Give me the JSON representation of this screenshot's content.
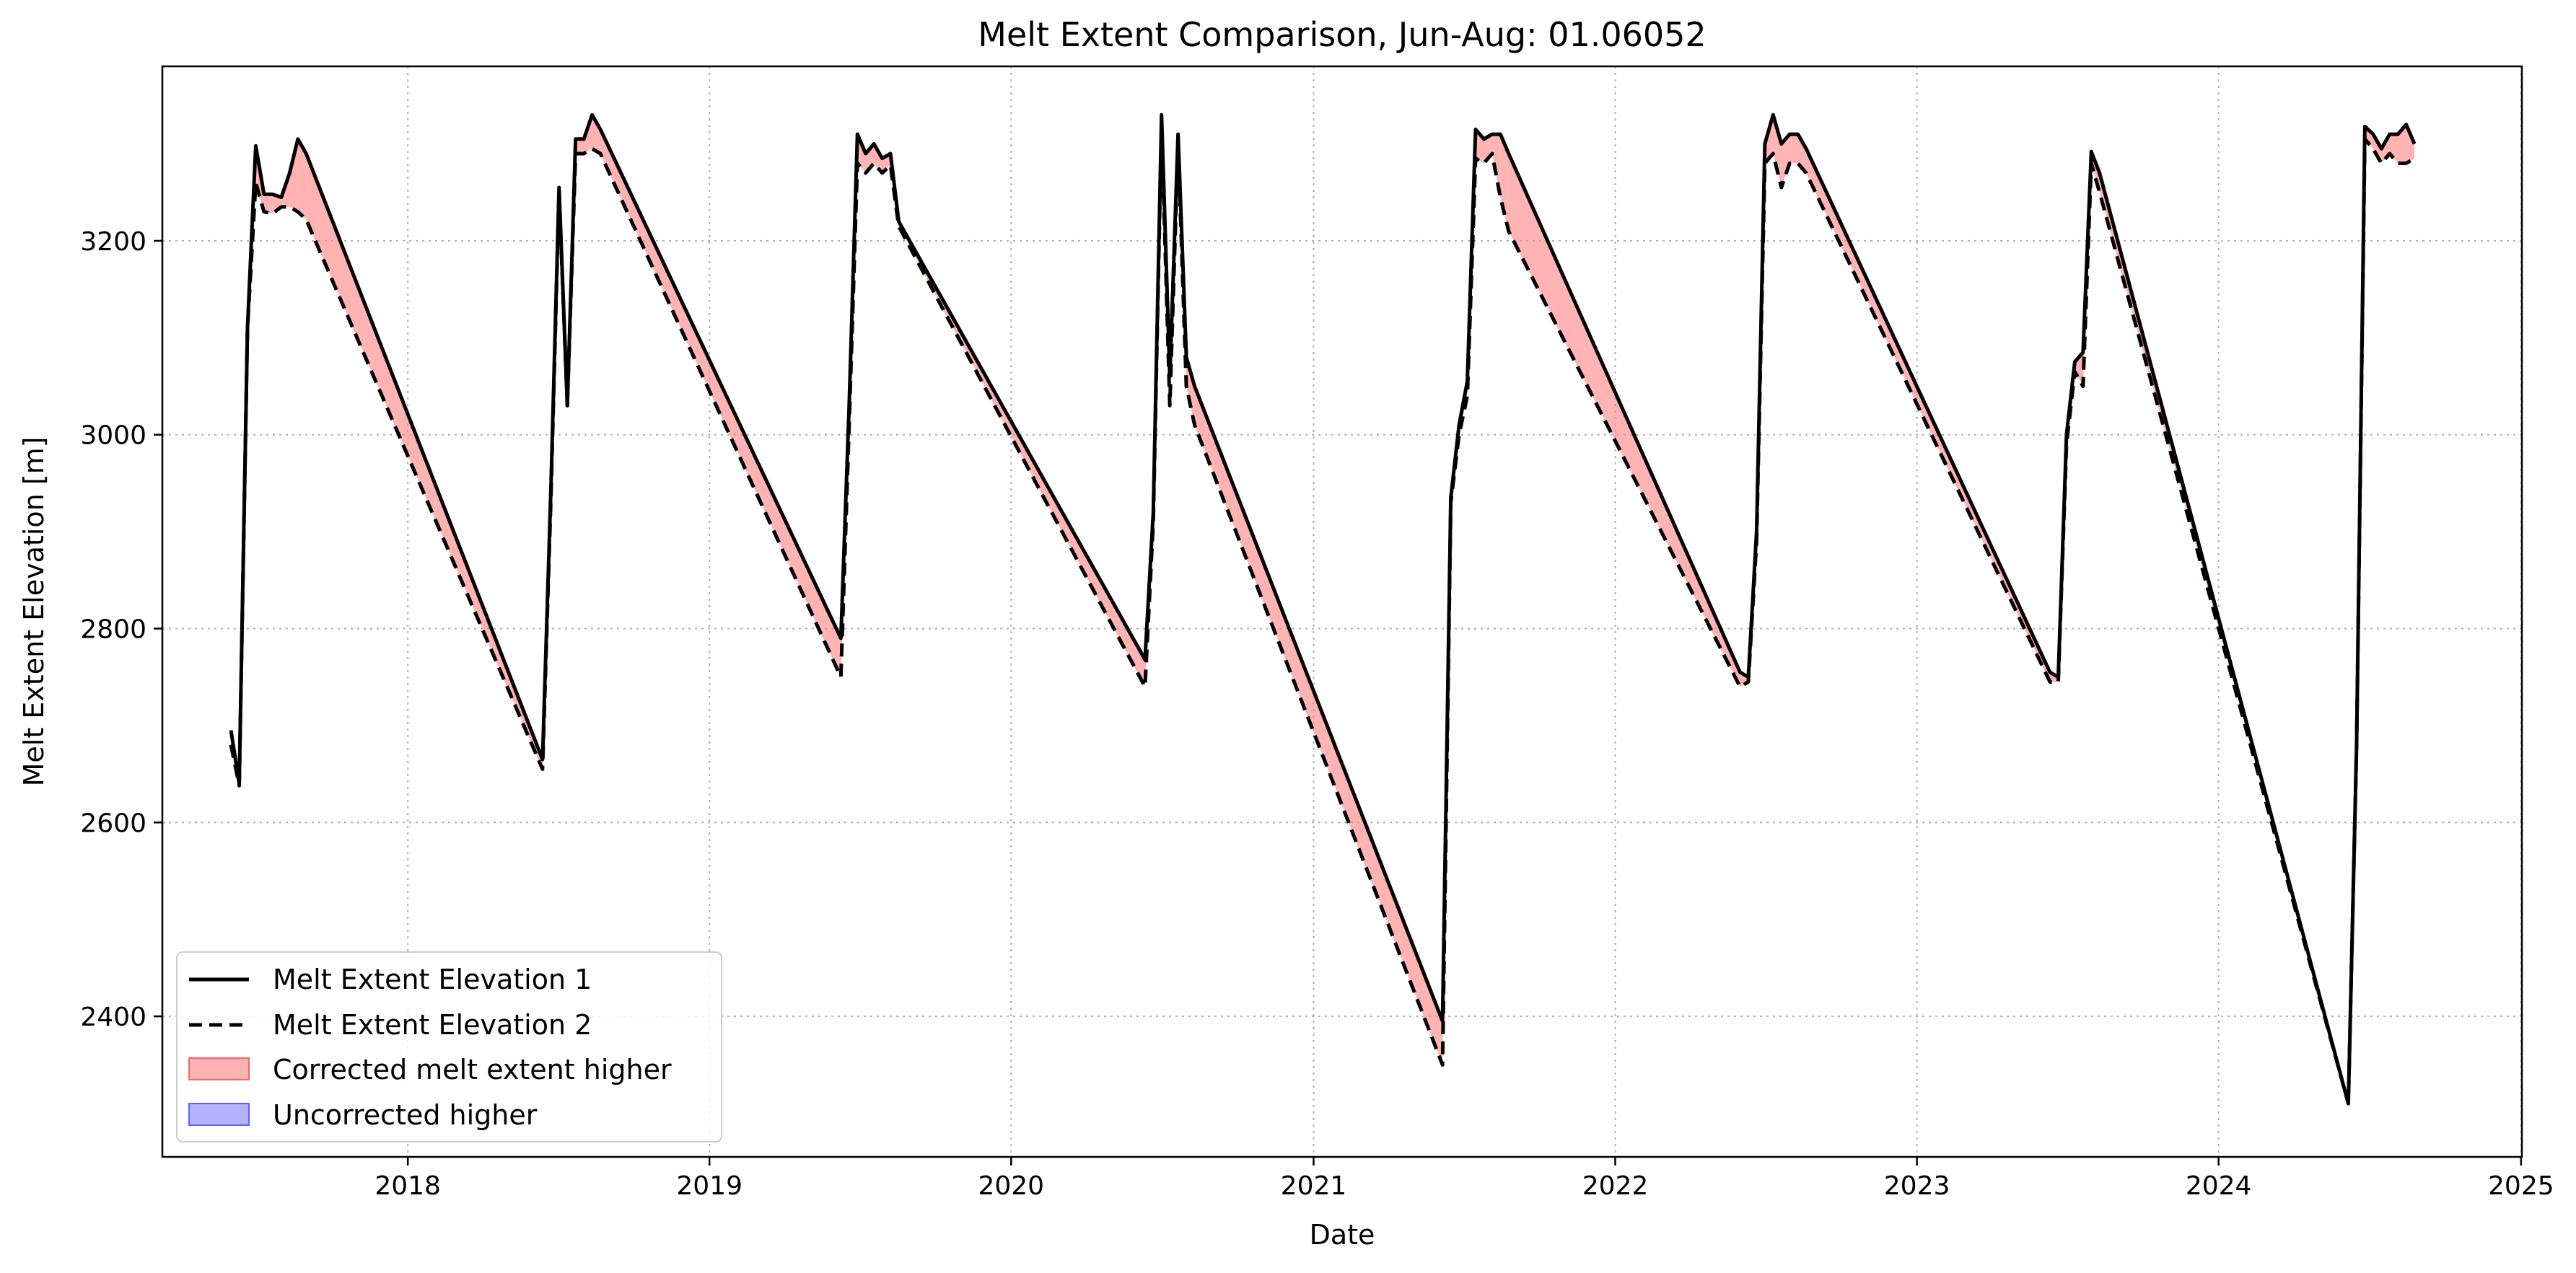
{
  "chart_data": {
    "type": "line",
    "title": "Melt Extent Comparison, Jun-Aug: 01.06052",
    "xlabel": "Date",
    "ylabel": "Melt Extent Elevation [m]",
    "xlim": [
      "2017-03-10",
      "2025-01-02"
    ],
    "ylim": [
      2255,
      3380
    ],
    "x_ticks": [
      "2018",
      "2019",
      "2020",
      "2021",
      "2022",
      "2023",
      "2024",
      "2025"
    ],
    "y_ticks": [
      2400,
      2600,
      2800,
      3000,
      3200
    ],
    "grid": true,
    "legend_position": "lower-left",
    "legend": [
      {
        "label": "Melt Extent Elevation 1",
        "style": "solid",
        "color": "#000000"
      },
      {
        "label": "Melt Extent Elevation 2",
        "style": "dashed",
        "color": "#000000"
      },
      {
        "label": "Corrected melt extent higher",
        "style": "fill",
        "color": "#ff8080"
      },
      {
        "label": "Uncorrected higher",
        "style": "fill",
        "color": "#8080ff"
      }
    ],
    "series": [
      {
        "name": "Melt Extent Elevation 1",
        "style": "solid",
        "dates": [
          "2017-06-01",
          "2017-06-11",
          "2017-06-21",
          "2017-07-01",
          "2017-07-11",
          "2017-07-21",
          "2017-08-01",
          "2017-08-11",
          "2017-08-21",
          "2017-08-31",
          "2018-06-13",
          "2018-06-23",
          "2018-07-03",
          "2018-07-13",
          "2018-07-23",
          "2018-08-02",
          "2018-08-12",
          "2018-08-22",
          "2019-06-09",
          "2019-06-19",
          "2019-06-29",
          "2019-07-09",
          "2019-07-19",
          "2019-07-29",
          "2019-08-08",
          "2019-08-18",
          "2020-06-11",
          "2020-06-21",
          "2020-07-01",
          "2020-07-11",
          "2020-07-21",
          "2020-07-31",
          "2020-08-10",
          "2021-06-06",
          "2021-06-16",
          "2021-06-26",
          "2021-07-06",
          "2021-07-16",
          "2021-07-26",
          "2021-08-05",
          "2021-08-15",
          "2021-08-25",
          "2022-06-01",
          "2022-06-11",
          "2022-06-21",
          "2022-07-01",
          "2022-07-11",
          "2022-07-21",
          "2022-07-31",
          "2022-08-10",
          "2022-08-20",
          "2023-06-11",
          "2023-06-21",
          "2023-07-01",
          "2023-07-11",
          "2023-07-21",
          "2023-07-31",
          "2023-08-10",
          "2024-06-06",
          "2024-06-16",
          "2024-06-26",
          "2024-07-06",
          "2024-07-16",
          "2024-07-26",
          "2024-08-05",
          "2024-08-15",
          "2024-08-25"
        ],
        "values": [
          2695,
          2640,
          3110,
          3298,
          3248,
          3248,
          3245,
          3270,
          3305,
          3290,
          2665,
          2940,
          3255,
          3030,
          3305,
          3305,
          3330,
          3315,
          2790,
          3030,
          3310,
          3290,
          3300,
          3285,
          3290,
          3220,
          2768,
          2920,
          3330,
          3060,
          3310,
          3080,
          3050,
          2395,
          2935,
          3010,
          3055,
          3315,
          3305,
          3310,
          3310,
          3290,
          2755,
          2750,
          2900,
          3300,
          3330,
          3300,
          3310,
          3310,
          3295,
          2755,
          2750,
          3000,
          3075,
          3085,
          3292,
          3270,
          2310,
          2680,
          3318,
          3310,
          3295,
          3310,
          3310,
          3320,
          3300
        ]
      },
      {
        "name": "Melt Extent Elevation 2",
        "style": "dashed",
        "dates": [
          "2017-06-01",
          "2017-06-11",
          "2017-06-21",
          "2017-07-01",
          "2017-07-11",
          "2017-07-21",
          "2017-08-01",
          "2017-08-11",
          "2017-08-21",
          "2017-08-31",
          "2018-06-13",
          "2018-06-23",
          "2018-07-03",
          "2018-07-13",
          "2018-07-23",
          "2018-08-02",
          "2018-08-12",
          "2018-08-22",
          "2019-06-09",
          "2019-06-19",
          "2019-06-29",
          "2019-07-09",
          "2019-07-19",
          "2019-07-29",
          "2019-08-08",
          "2019-08-18",
          "2020-06-11",
          "2020-06-21",
          "2020-07-01",
          "2020-07-11",
          "2020-07-21",
          "2020-07-31",
          "2020-08-10",
          "2021-06-06",
          "2021-06-16",
          "2021-06-26",
          "2021-07-06",
          "2021-07-16",
          "2021-07-26",
          "2021-08-05",
          "2021-08-15",
          "2021-08-25",
          "2022-06-01",
          "2022-06-11",
          "2022-06-21",
          "2022-07-01",
          "2022-07-11",
          "2022-07-21",
          "2022-07-31",
          "2022-08-10",
          "2022-08-20",
          "2023-06-11",
          "2023-06-21",
          "2023-07-01",
          "2023-07-11",
          "2023-07-21",
          "2023-07-31",
          "2023-08-10",
          "2024-06-06",
          "2024-06-16",
          "2024-06-26",
          "2024-07-06",
          "2024-07-16",
          "2024-07-26",
          "2024-08-05",
          "2024-08-15",
          "2024-08-25"
        ],
        "values": [
          2680,
          2638,
          3110,
          3260,
          3230,
          3228,
          3235,
          3235,
          3230,
          3222,
          2655,
          2930,
          3250,
          3030,
          3290,
          3290,
          3295,
          3290,
          2750,
          3010,
          3280,
          3270,
          3280,
          3270,
          3278,
          3215,
          2740,
          2910,
          3320,
          3030,
          3300,
          3050,
          3010,
          2350,
          2930,
          3000,
          3040,
          3285,
          3280,
          3290,
          3245,
          3210,
          2740,
          2745,
          2890,
          3280,
          3290,
          3255,
          3280,
          3280,
          3270,
          2745,
          2745,
          2990,
          3065,
          3050,
          3280,
          3250,
          2310,
          2680,
          3305,
          3295,
          3280,
          3290,
          3280,
          3280,
          3285
        ]
      }
    ]
  }
}
